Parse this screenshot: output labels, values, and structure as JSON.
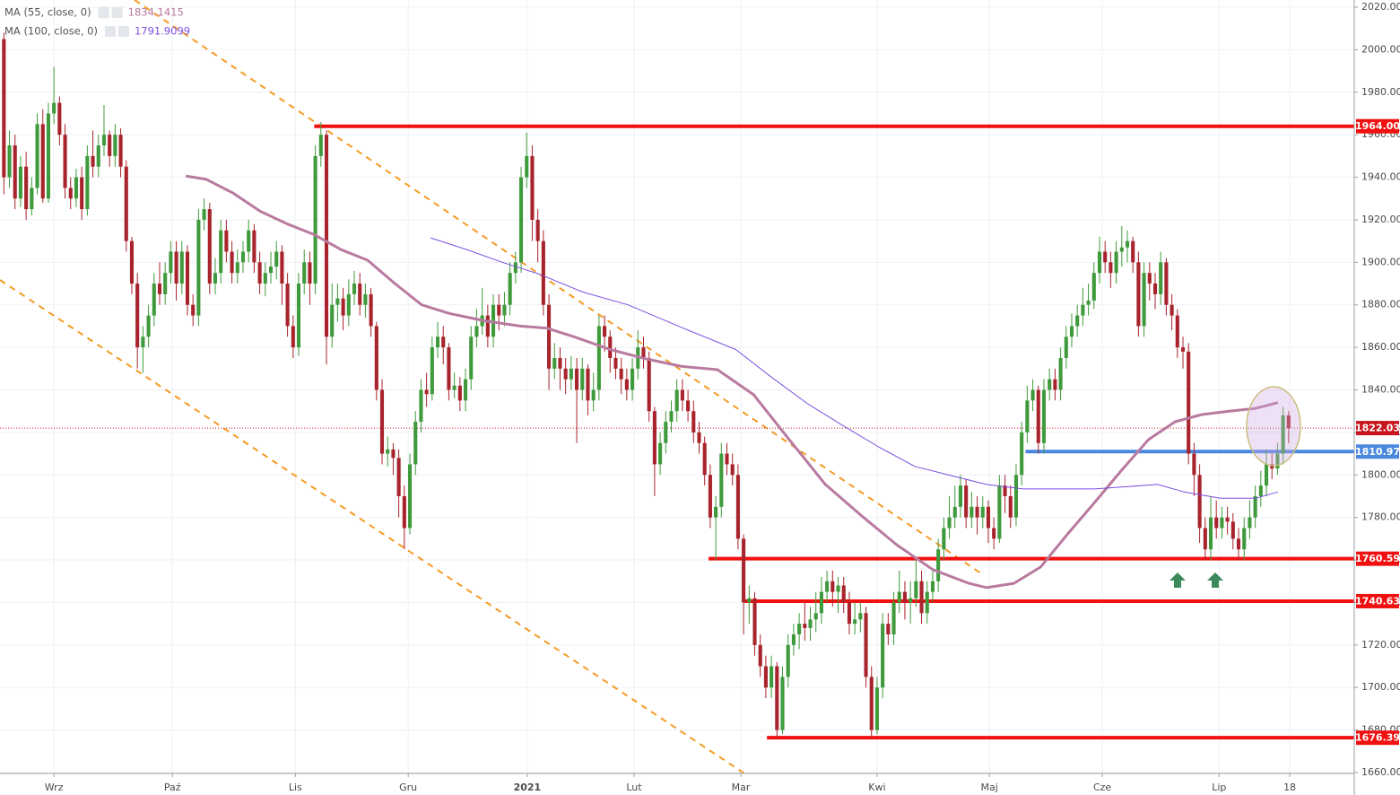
{
  "chart_data": {
    "type": "candlestick",
    "xlim": [
      -0.7,
      242.8
    ],
    "ylim": [
      1660,
      2020
    ],
    "grid": true,
    "up_color": "#3f9a3b",
    "down_color": "#a8232b",
    "xticks": [
      {
        "value": 9,
        "label": "Wrz"
      },
      {
        "value": 30.3,
        "label": "Paź"
      },
      {
        "value": 52.4,
        "label": "Lis"
      },
      {
        "value": 72.7,
        "label": "Gru"
      },
      {
        "value": 94.1,
        "label": "2021"
      },
      {
        "value": 113.3,
        "label": "Lut"
      },
      {
        "value": 132.5,
        "label": "Mar"
      },
      {
        "value": 157,
        "label": "Kwi"
      },
      {
        "value": 177.2,
        "label": "Maj"
      },
      {
        "value": 197.5,
        "label": "Cze"
      },
      {
        "value": 218.5,
        "label": "Lip"
      },
      {
        "value": 231.2,
        "label": "18"
      }
    ],
    "yticks": [
      {
        "value": 1660,
        "label": "1660.00"
      },
      {
        "value": 1680,
        "label": "1680.00"
      },
      {
        "value": 1700,
        "label": "1700.00"
      },
      {
        "value": 1720,
        "label": "1720.00"
      },
      {
        "value": 1740,
        "label": "1740.00"
      },
      {
        "value": 1760,
        "label": "1760.00"
      },
      {
        "value": 1780,
        "label": "1780.00"
      },
      {
        "value": 1800,
        "label": "1800.00"
      },
      {
        "value": 1820,
        "label": "1820.00"
      },
      {
        "value": 1840,
        "label": "1840.00"
      },
      {
        "value": 1860,
        "label": "1860.00"
      },
      {
        "value": 1880,
        "label": "1880.00"
      },
      {
        "value": 1900,
        "label": "1900.00"
      },
      {
        "value": 1920,
        "label": "1920.00"
      },
      {
        "value": 1940,
        "label": "1940.00"
      },
      {
        "value": 1960,
        "label": "1960.00"
      },
      {
        "value": 1980,
        "label": "1980.00"
      },
      {
        "value": 2000,
        "label": "2000.00"
      },
      {
        "value": 2020,
        "label": "2020.00"
      }
    ],
    "candles": {
      "open": [
        2005,
        1940,
        1955,
        1930,
        1945,
        1925,
        1935,
        1965,
        1930,
        1970,
        1975,
        1960,
        1935,
        1930,
        1940,
        1925,
        1950,
        1945,
        1955,
        1960,
        1950,
        1960,
        1945,
        1910,
        1890,
        1860,
        1865,
        1875,
        1890,
        1885,
        1895,
        1905,
        1890,
        1905,
        1880,
        1875,
        1920,
        1925,
        1890,
        1895,
        1915,
        1905,
        1895,
        1900,
        1905,
        1915,
        1900,
        1890,
        1895,
        1898,
        1905,
        1890,
        1870,
        1860,
        1890,
        1900,
        1890,
        1950,
        1960,
        1865,
        1880,
        1883,
        1875,
        1885,
        1890,
        1880,
        1885,
        1870,
        1840,
        1810,
        1812,
        1808,
        1790,
        1775,
        1805,
        1825,
        1840,
        1838,
        1860,
        1865,
        1860,
        1840,
        1842,
        1835,
        1845,
        1865,
        1870,
        1875,
        1865,
        1880,
        1875,
        1880,
        1895,
        1900,
        1940,
        1950,
        1920,
        1910,
        1880,
        1850,
        1855,
        1850,
        1845,
        1850,
        1840,
        1850,
        1835,
        1840,
        1870,
        1865,
        1855,
        1850,
        1845,
        1840,
        1850,
        1860,
        1855,
        1830,
        1805,
        1815,
        1825,
        1830,
        1840,
        1835,
        1830,
        1820,
        1815,
        1800,
        1780,
        1785,
        1810,
        1805,
        1800,
        1770,
        1740,
        1742,
        1720,
        1710,
        1700,
        1710,
        1680,
        1705,
        1720,
        1725,
        1730,
        1728,
        1732,
        1735,
        1745,
        1750,
        1745,
        1748,
        1740,
        1730,
        1732,
        1735,
        1705,
        1680,
        1700,
        1730,
        1725,
        1740,
        1745,
        1740,
        1742,
        1750,
        1735,
        1745,
        1750,
        1765,
        1775,
        1780,
        1785,
        1795,
        1780,
        1785,
        1780,
        1785,
        1775,
        1770,
        1795,
        1790,
        1780,
        1800,
        1820,
        1835,
        1840,
        1815,
        1840,
        1845,
        1840,
        1855,
        1865,
        1870,
        1875,
        1880,
        1882,
        1895,
        1905,
        1900,
        1895,
        1905,
        1907,
        1910,
        1900,
        1870,
        1895,
        1890,
        1885,
        1900,
        1880,
        1875,
        1860,
        1858,
        1810,
        1800,
        1775,
        1765,
        1780,
        1775,
        1780,
        1778,
        1770,
        1765,
        1775,
        1780,
        1790,
        1795,
        1805,
        1803,
        1810,
        1828
      ],
      "high": [
        2008,
        1962,
        1960,
        1950,
        1952,
        1940,
        1970,
        1972,
        1975,
        1992,
        1978,
        1965,
        1940,
        1944,
        1945,
        1955,
        1962,
        1960,
        1974,
        1962,
        1965,
        1963,
        1948,
        1912,
        1895,
        1870,
        1880,
        1895,
        1900,
        1900,
        1910,
        1910,
        1910,
        1908,
        1885,
        1925,
        1930,
        1928,
        1902,
        1920,
        1920,
        1910,
        1906,
        1910,
        1920,
        1918,
        1905,
        1900,
        1905,
        1910,
        1908,
        1895,
        1875,
        1895,
        1906,
        1905,
        1955,
        1966,
        1962,
        1890,
        1890,
        1888,
        1892,
        1896,
        1895,
        1890,
        1888,
        1872,
        1845,
        1818,
        1815,
        1812,
        1795,
        1810,
        1830,
        1845,
        1848,
        1865,
        1872,
        1870,
        1862,
        1848,
        1846,
        1850,
        1870,
        1878,
        1888,
        1880,
        1885,
        1885,
        1886,
        1900,
        1905,
        1945,
        1961,
        1955,
        1925,
        1915,
        1885,
        1862,
        1860,
        1855,
        1856,
        1855,
        1855,
        1852,
        1848,
        1875,
        1875,
        1868,
        1860,
        1855,
        1850,
        1855,
        1868,
        1865,
        1858,
        1832,
        1820,
        1830,
        1835,
        1845,
        1845,
        1840,
        1835,
        1825,
        1818,
        1805,
        1790,
        1815,
        1815,
        1810,
        1805,
        1772,
        1748,
        1745,
        1725,
        1715,
        1715,
        1712,
        1710,
        1725,
        1730,
        1735,
        1740,
        1738,
        1745,
        1752,
        1755,
        1755,
        1752,
        1752,
        1745,
        1740,
        1740,
        1738,
        1710,
        1705,
        1735,
        1735,
        1745,
        1755,
        1750,
        1750,
        1760,
        1755,
        1750,
        1755,
        1770,
        1780,
        1790,
        1795,
        1800,
        1798,
        1792,
        1790,
        1790,
        1788,
        1780,
        1800,
        1800,
        1795,
        1805,
        1825,
        1842,
        1845,
        1842,
        1845,
        1850,
        1850,
        1860,
        1870,
        1876,
        1880,
        1888,
        1890,
        1900,
        1912,
        1910,
        1905,
        1910,
        1917,
        1915,
        1912,
        1905,
        1900,
        1900,
        1895,
        1905,
        1902,
        1885,
        1878,
        1865,
        1862,
        1815,
        1805,
        1780,
        1790,
        1788,
        1785,
        1785,
        1782,
        1775,
        1780,
        1788,
        1795,
        1802,
        1812,
        1810,
        1815,
        1832,
        1830
      ],
      "low": [
        1932,
        1935,
        1925,
        1926,
        1920,
        1922,
        1932,
        1928,
        1928,
        1965,
        1955,
        1930,
        1925,
        1926,
        1920,
        1922,
        1940,
        1940,
        1950,
        1945,
        1945,
        1940,
        1905,
        1885,
        1850,
        1848,
        1860,
        1870,
        1880,
        1880,
        1890,
        1882,
        1885,
        1875,
        1870,
        1870,
        1915,
        1885,
        1885,
        1890,
        1900,
        1890,
        1890,
        1895,
        1900,
        1895,
        1885,
        1884,
        1890,
        1892,
        1880,
        1865,
        1855,
        1856,
        1885,
        1880,
        1885,
        1945,
        1852,
        1860,
        1872,
        1868,
        1870,
        1880,
        1875,
        1874,
        1865,
        1835,
        1805,
        1804,
        1800,
        1780,
        1765,
        1772,
        1800,
        1820,
        1832,
        1835,
        1855,
        1852,
        1835,
        1836,
        1830,
        1830,
        1840,
        1860,
        1866,
        1860,
        1860,
        1868,
        1870,
        1875,
        1890,
        1895,
        1935,
        1910,
        1900,
        1875,
        1840,
        1845,
        1840,
        1838,
        1840,
        1815,
        1835,
        1828,
        1830,
        1835,
        1858,
        1848,
        1845,
        1838,
        1835,
        1835,
        1845,
        1850,
        1825,
        1790,
        1800,
        1810,
        1820,
        1825,
        1830,
        1825,
        1815,
        1810,
        1795,
        1775,
        1760,
        1780,
        1800,
        1795,
        1765,
        1725,
        1730,
        1715,
        1705,
        1695,
        1695,
        1676,
        1678,
        1700,
        1715,
        1718,
        1722,
        1722,
        1726,
        1730,
        1740,
        1738,
        1735,
        1735,
        1725,
        1725,
        1726,
        1700,
        1676,
        1678,
        1695,
        1720,
        1720,
        1735,
        1732,
        1730,
        1738,
        1730,
        1730,
        1740,
        1745,
        1760,
        1770,
        1775,
        1780,
        1775,
        1775,
        1772,
        1775,
        1768,
        1765,
        1768,
        1782,
        1775,
        1776,
        1795,
        1815,
        1830,
        1810,
        1810,
        1835,
        1835,
        1835,
        1850,
        1860,
        1865,
        1870,
        1875,
        1878,
        1890,
        1895,
        1888,
        1890,
        1898,
        1900,
        1895,
        1865,
        1865,
        1882,
        1878,
        1880,
        1875,
        1868,
        1855,
        1850,
        1805,
        1790,
        1768,
        1760,
        1760,
        1770,
        1770,
        1772,
        1765,
        1760,
        1760,
        1770,
        1775,
        1785,
        1790,
        1798,
        1800,
        1805,
        1815
      ],
      "close": [
        1940,
        1955,
        1930,
        1945,
        1925,
        1935,
        1965,
        1930,
        1970,
        1975,
        1960,
        1935,
        1930,
        1940,
        1925,
        1950,
        1945,
        1955,
        1960,
        1950,
        1960,
        1945,
        1910,
        1890,
        1860,
        1865,
        1875,
        1890,
        1885,
        1895,
        1905,
        1890,
        1905,
        1880,
        1875,
        1920,
        1925,
        1890,
        1895,
        1915,
        1905,
        1895,
        1900,
        1905,
        1915,
        1900,
        1890,
        1895,
        1898,
        1905,
        1890,
        1870,
        1860,
        1890,
        1900,
        1890,
        1950,
        1960,
        1865,
        1880,
        1883,
        1875,
        1885,
        1890,
        1880,
        1885,
        1870,
        1840,
        1810,
        1812,
        1808,
        1790,
        1775,
        1805,
        1825,
        1840,
        1838,
        1860,
        1865,
        1860,
        1840,
        1842,
        1835,
        1845,
        1865,
        1870,
        1875,
        1865,
        1880,
        1875,
        1880,
        1895,
        1900,
        1940,
        1950,
        1920,
        1910,
        1880,
        1850,
        1855,
        1850,
        1845,
        1850,
        1840,
        1850,
        1835,
        1840,
        1870,
        1865,
        1855,
        1850,
        1845,
        1840,
        1850,
        1860,
        1855,
        1830,
        1805,
        1815,
        1825,
        1830,
        1840,
        1835,
        1830,
        1820,
        1815,
        1800,
        1780,
        1785,
        1810,
        1805,
        1800,
        1770,
        1740,
        1742,
        1720,
        1710,
        1700,
        1710,
        1680,
        1705,
        1720,
        1725,
        1730,
        1728,
        1732,
        1735,
        1745,
        1750,
        1745,
        1748,
        1740,
        1730,
        1732,
        1735,
        1705,
        1680,
        1700,
        1730,
        1725,
        1740,
        1745,
        1740,
        1742,
        1750,
        1735,
        1745,
        1750,
        1765,
        1775,
        1780,
        1785,
        1795,
        1780,
        1785,
        1780,
        1785,
        1775,
        1770,
        1795,
        1790,
        1780,
        1800,
        1820,
        1835,
        1840,
        1815,
        1840,
        1845,
        1840,
        1855,
        1865,
        1870,
        1875,
        1880,
        1882,
        1895,
        1905,
        1900,
        1895,
        1905,
        1907,
        1910,
        1900,
        1870,
        1895,
        1890,
        1885,
        1900,
        1880,
        1875,
        1860,
        1858,
        1810,
        1800,
        1775,
        1765,
        1780,
        1775,
        1780,
        1778,
        1770,
        1765,
        1775,
        1780,
        1790,
        1795,
        1805,
        1803,
        1810,
        1828,
        1822
      ]
    },
    "indicators": [
      {
        "name": "MA (55, close, 0)",
        "last": 1834.1415,
        "color": "#b97aa0",
        "width": 3,
        "x": [
          32.7,
          36.4,
          41.2,
          46.1,
          51,
          55.8,
          60.6,
          65.4,
          70.3,
          75.1,
          80,
          86.4,
          92.8,
          97.7,
          102.5,
          109,
          115.4,
          121.9,
          128.3,
          134.8,
          141.2,
          147.7,
          154.1,
          160.6,
          167,
          173.5,
          176.7,
          181.6,
          186.4,
          191.2,
          196.1,
          200.9,
          205.8,
          210.6,
          215.4,
          220.3,
          225.1,
          229.1
        ],
        "values": [
          1940.6,
          1939,
          1932.6,
          1924,
          1918,
          1913,
          1906,
          1901,
          1890,
          1880,
          1876,
          1872.5,
          1870,
          1869,
          1865,
          1859,
          1854.6,
          1851,
          1849.5,
          1837.7,
          1816.6,
          1795.5,
          1781,
          1767,
          1755.5,
          1749,
          1747,
          1749,
          1756.7,
          1772,
          1787,
          1802,
          1816.6,
          1825,
          1828.4,
          1830,
          1831.3,
          1834
        ]
      },
      {
        "name": "MA (100, close, 0)",
        "last": 1791.9099,
        "color": "#7b4fe0",
        "width": 1,
        "x": [
          76.7,
          83.2,
          89.6,
          96.1,
          104.1,
          112.2,
          121.9,
          131.6,
          138,
          144.5,
          151,
          157.4,
          163.8,
          170.3,
          176.7,
          183.2,
          189.6,
          196.1,
          202.5,
          207.4,
          212.2,
          218.7,
          225.1,
          229.1
        ],
        "values": [
          1911.5,
          1906,
          1900,
          1894.6,
          1886,
          1880,
          1869.3,
          1859,
          1846,
          1833.5,
          1823,
          1813,
          1804,
          1799.7,
          1795.5,
          1793.4,
          1793.4,
          1793.4,
          1794.6,
          1795.5,
          1792,
          1789,
          1789,
          1792
        ]
      }
    ],
    "levels": [
      {
        "value": 1964,
        "label": "1964.00",
        "color": "#f01010",
        "x_start": 55.8
      },
      {
        "value": 1760.59,
        "label": "1760.59",
        "color": "#f01010",
        "x_start": 126.7
      },
      {
        "value": 1740.63,
        "label": "1740.63",
        "color": "#f01010",
        "x_start": 133.2
      },
      {
        "value": 1676.39,
        "label": "1676.39",
        "color": "#f01010",
        "x_start": 137.2
      },
      {
        "value": 1810.97,
        "label": "1810.97",
        "color": "#4a88e0",
        "x_start": 183.7
      }
    ],
    "current_price": {
      "value": 1822.03,
      "label": "1822.03",
      "color": "#c8161e"
    },
    "trendlines": [
      {
        "color": "#f59a23",
        "x": [
          -0.7,
          133.2
        ],
        "y": [
          1891.7,
          1659.5
        ]
      },
      {
        "color": "#f59a23",
        "x": [
          23.5,
          175.9
        ],
        "y": [
          2023.4,
          1753.3
        ]
      }
    ]
  }
}
